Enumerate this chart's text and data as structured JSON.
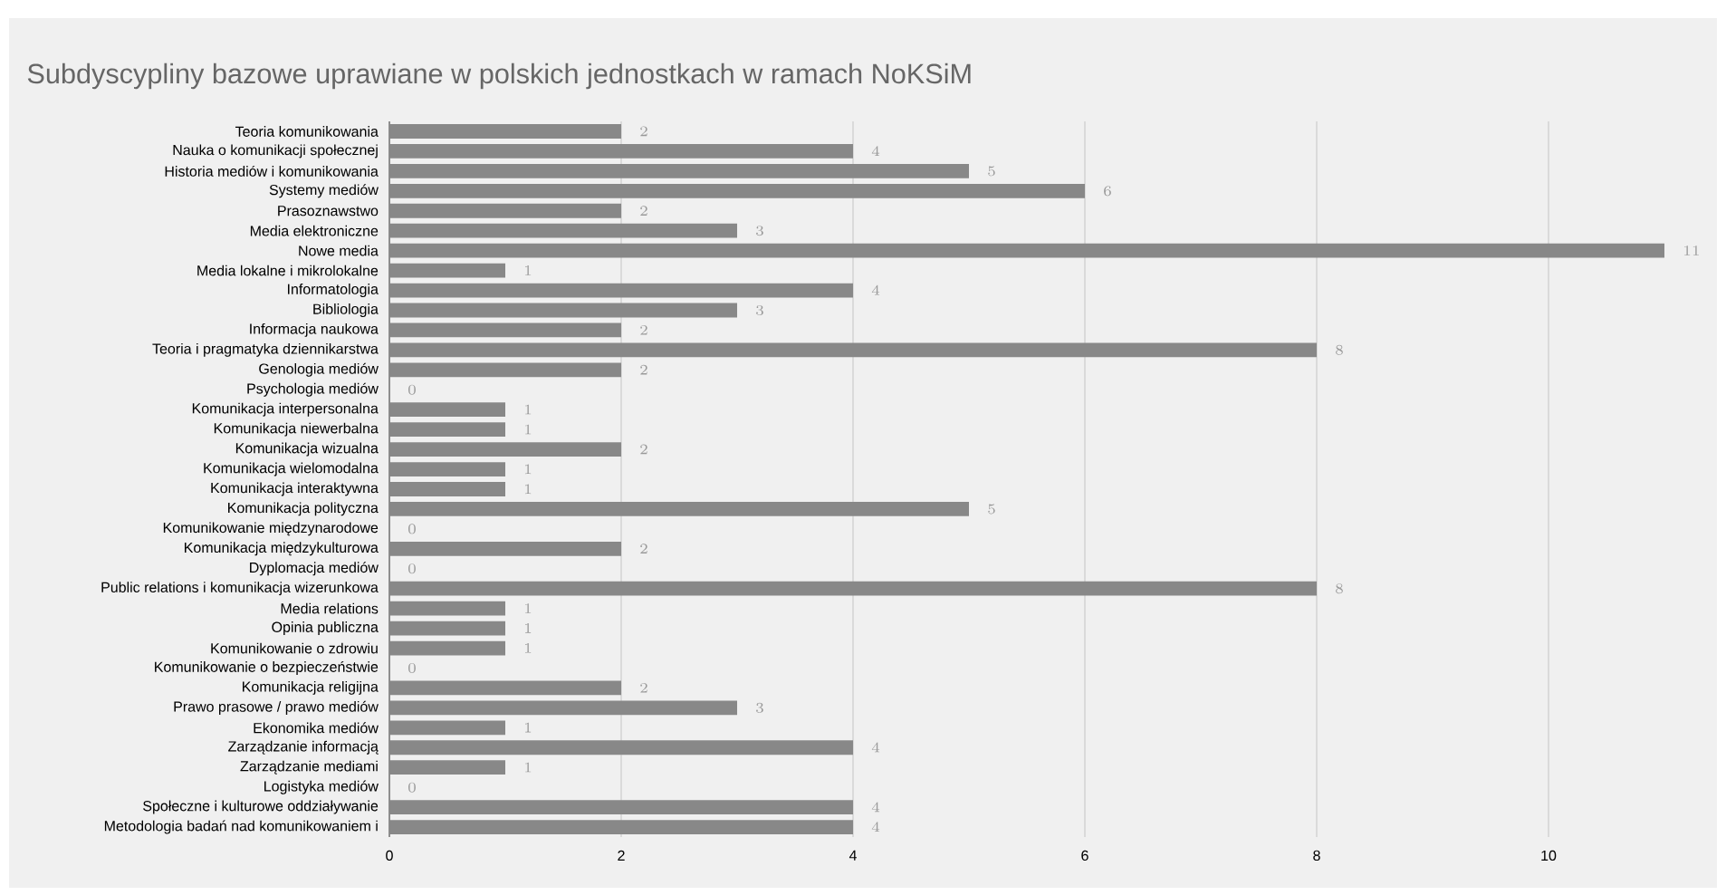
{
  "chart_data": {
    "type": "bar",
    "orientation": "horizontal",
    "title": "Subdyscypliny bazowe uprawiane w polskich jednostkach w ramach NoKSiM",
    "categories": [
      "Teoria komunikowania",
      "Nauka o komunikacji społecznej",
      "Historia mediów i komunikowania",
      "Systemy mediów",
      "Prasoznawstwo",
      "Media elektroniczne",
      "Nowe media",
      "Media lokalne i mikrolokalne",
      "Informatologia",
      "Bibliologia",
      "Informacja naukowa",
      "Teoria i pragmatyka dziennikarstwa",
      "Genologia mediów",
      "Psychologia mediów",
      "Komunikacja interpersonalna",
      "Komunikacja niewerbalna",
      "Komunikacja wizualna",
      "Komunikacja wielomodalna",
      "Komunikacja interaktywna",
      "Komunikacja polityczna",
      "Komunikowanie międzynarodowe",
      "Komunikacja międzykulturowa",
      "Dyplomacja mediów",
      "Public relations i komunikacja wizerunkowa",
      "Media relations",
      "Opinia publiczna",
      "Komunikowanie o zdrowiu",
      "Komunikowanie o bezpieczeństwie",
      "Komunikacja religijna",
      "Prawo prasowe / prawo mediów",
      "Ekonomika mediów",
      "Zarządzanie informacją",
      "Zarządzanie mediami",
      "Logistyka mediów",
      "Społeczne i kulturowe oddziaływanie",
      "Metodologia badań nad komunikowaniem i"
    ],
    "values": [
      2,
      4,
      5,
      6,
      2,
      3,
      11,
      1,
      4,
      3,
      2,
      8,
      2,
      0,
      1,
      1,
      2,
      1,
      1,
      5,
      0,
      2,
      0,
      8,
      1,
      1,
      1,
      0,
      2,
      3,
      1,
      4,
      1,
      0,
      4,
      4
    ],
    "color": "#888888",
    "xlim": [
      0,
      11.5
    ],
    "xticks": [
      0,
      2,
      4,
      6,
      8,
      10
    ],
    "grid": "x",
    "data_labels": true
  }
}
